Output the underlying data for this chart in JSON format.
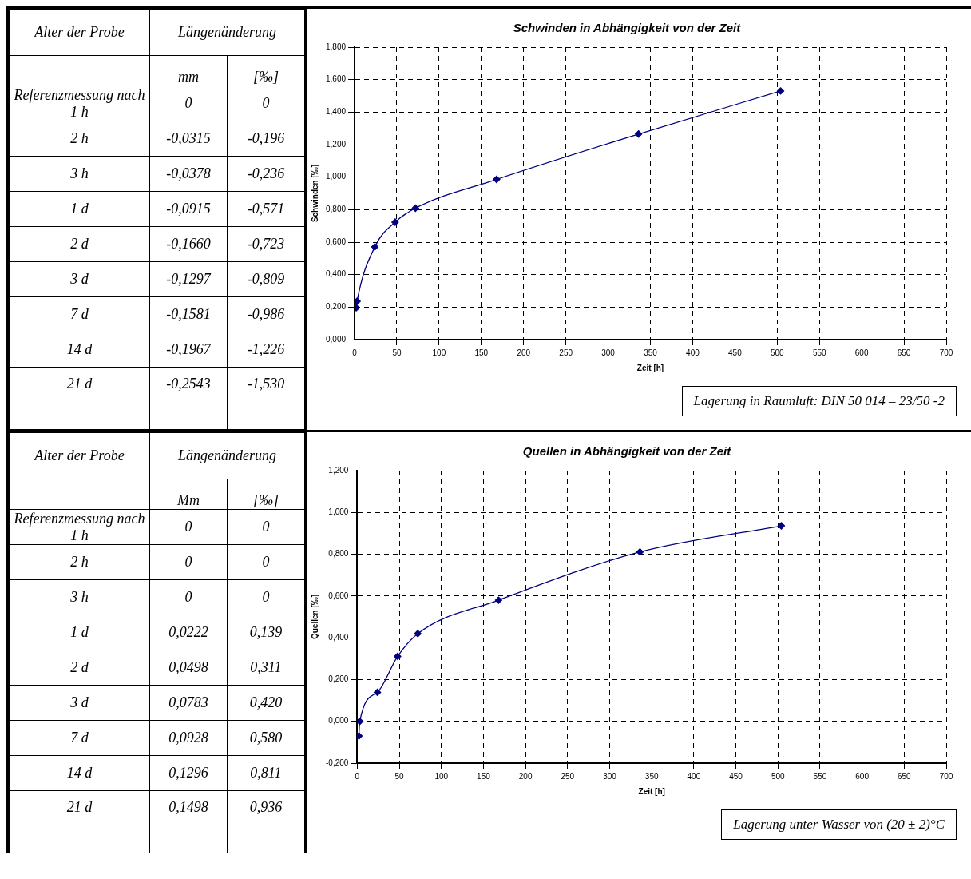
{
  "chart_data": [
    {
      "type": "other",
      "xlabel": "Alter der Probe",
      "title": "Längenänderung",
      "categories": [
        "Referenzmessung nach 1 h",
        "2 h",
        "3 h",
        "1 d",
        "2 d",
        "3 d",
        "7 d",
        "14 d",
        "21 d"
      ],
      "series": [
        {
          "name": "mm",
          "values": [
            0,
            -0.0315,
            -0.0378,
            -0.0915,
            -0.166,
            -0.1297,
            -0.1581,
            -0.1967,
            -0.2543
          ],
          "value_labels": [
            "0",
            "-0,0315",
            "-0,0378",
            "-0,0915",
            "-0,1660",
            "-0,1297",
            "-0,1581",
            "-0,1967",
            "-0,2543"
          ]
        },
        {
          "name": "[‰]",
          "values": [
            0,
            -0.196,
            -0.236,
            -0.571,
            -0.723,
            -0.809,
            -0.986,
            -1.226,
            -1.53
          ],
          "value_labels": [
            "0",
            "-0,196",
            "-0,236",
            "-0,571",
            "-0,723",
            "-0,809",
            "-0,986",
            "-1,226",
            "-1,530"
          ]
        }
      ]
    },
    {
      "type": "line",
      "title": "Schwinden in Abhängigkeit von der Zeit",
      "xlabel": "Zeit [h]",
      "ylabel": "Schwinden [‰]",
      "x": [
        2,
        3,
        24,
        48,
        72,
        168,
        336,
        504
      ],
      "series": [
        {
          "color": "#000080",
          "values": [
            0.196,
            0.236,
            0.571,
            0.723,
            0.809,
            0.986,
            1.265,
            1.53
          ]
        }
      ],
      "xlim": [
        0,
        700
      ],
      "xticks": [
        0,
        50,
        100,
        150,
        200,
        250,
        300,
        350,
        400,
        450,
        500,
        550,
        600,
        650,
        700
      ],
      "ylim": [
        0,
        1.8
      ],
      "yticks": [
        {
          "value": 0,
          "label": "0,000"
        },
        {
          "value": 0.2,
          "label": "0,200"
        },
        {
          "value": 0.4,
          "label": "0,400"
        },
        {
          "value": 0.6,
          "label": "0,600"
        },
        {
          "value": 0.8,
          "label": "0,800"
        },
        {
          "value": 1,
          "label": "1,000"
        },
        {
          "value": 1.2,
          "label": "1,200"
        },
        {
          "value": 1.4,
          "label": "1,400"
        },
        {
          "value": 1.6,
          "label": "1,600"
        },
        {
          "value": 1.8,
          "label": "1,800"
        }
      ],
      "grid": true,
      "marker": "diamond",
      "line_style": "solid",
      "annotations": [
        "Lagerung in Raumluft: DIN 50 014 – 23/50 -2"
      ]
    },
    {
      "type": "other",
      "xlabel": "Alter der Probe",
      "title": "Längenänderung",
      "categories": [
        "Referenzmessung nach 1 h",
        "2 h",
        "3 h",
        "1 d",
        "2 d",
        "3 d",
        "7 d",
        "14 d",
        "21 d"
      ],
      "series": [
        {
          "name": "Mm",
          "values": [
            0,
            0,
            0,
            0.0222,
            0.0498,
            0.0783,
            0.0928,
            0.1296,
            0.1498
          ],
          "value_labels": [
            "0",
            "0",
            "0",
            "0,0222",
            "0,0498",
            "0,0783",
            "0,0928",
            "0,1296",
            "0,1498"
          ]
        },
        {
          "name": "[‰]",
          "values": [
            0,
            0,
            0,
            0.139,
            0.311,
            0.42,
            0.58,
            0.811,
            0.936
          ],
          "value_labels": [
            "0",
            "0",
            "0",
            "0,139",
            "0,311",
            "0,420",
            "0,580",
            "0,811",
            "0,936"
          ]
        }
      ]
    },
    {
      "type": "line",
      "title": "Quellen in Abhängigkeit von der Zeit",
      "xlabel": "Zeit [h]",
      "ylabel": "Quellen [‰]",
      "x": [
        2,
        3,
        24,
        48,
        72,
        168,
        336,
        504
      ],
      "series": [
        {
          "color": "#000080",
          "values": [
            -0.07,
            0,
            0.139,
            0.311,
            0.42,
            0.58,
            0.811,
            0.936
          ]
        }
      ],
      "xlim": [
        0,
        700
      ],
      "xticks": [
        0,
        50,
        100,
        150,
        200,
        250,
        300,
        350,
        400,
        450,
        500,
        550,
        600,
        650,
        700
      ],
      "ylim": [
        -0.2,
        1.2
      ],
      "yticks": [
        {
          "value": -0.2,
          "label": "-0,200"
        },
        {
          "value": 0,
          "label": "0,000"
        },
        {
          "value": 0.2,
          "label": "0,200"
        },
        {
          "value": 0.4,
          "label": "0,400"
        },
        {
          "value": 0.6,
          "label": "0,600"
        },
        {
          "value": 0.8,
          "label": "0,800"
        },
        {
          "value": 1,
          "label": "1,000"
        },
        {
          "value": 1.2,
          "label": "1,200"
        }
      ],
      "grid": true,
      "marker": "diamond",
      "line_style": "solid",
      "annotations": [
        "Lagerung unter Wasser von (20 ± 2)°C"
      ]
    }
  ]
}
